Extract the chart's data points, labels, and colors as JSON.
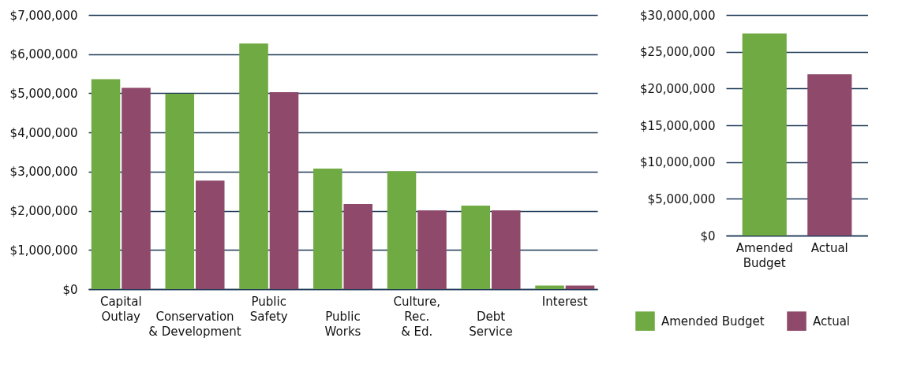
{
  "chart_data": [
    {
      "type": "bar",
      "categories": [
        "Capital\nOutlay",
        "Conservation\n& Development",
        "Public\nSafety",
        "Public\nWorks",
        "Culture,\nRec.\n& Ed.",
        "Debt\nService",
        "Interest"
      ],
      "series": [
        {
          "name": "Amended Budget",
          "color": "#70aa42",
          "values": [
            5360000,
            4990000,
            6270000,
            3080000,
            3010000,
            2130000,
            90000
          ]
        },
        {
          "name": "Actual",
          "color": "#8f496b",
          "values": [
            5140000,
            2770000,
            5030000,
            2170000,
            2010000,
            2010000,
            90000
          ]
        }
      ],
      "ylim": [
        0,
        7000000
      ],
      "yticks": [
        {
          "value": 0,
          "label": "$0"
        },
        {
          "value": 1000000,
          "label": "$1,000,000"
        },
        {
          "value": 2000000,
          "label": "$2,000,000"
        },
        {
          "value": 3000000,
          "label": "$3,000,000"
        },
        {
          "value": 4000000,
          "label": "$4,000,000"
        },
        {
          "value": 5000000,
          "label": "$5,000,000"
        },
        {
          "value": 6000000,
          "label": "$6,000,000"
        },
        {
          "value": 7000000,
          "label": "$7,000,000"
        }
      ],
      "grid": "y",
      "legend": "bottom right"
    },
    {
      "type": "bar",
      "categories": [
        "Amended\nBudget",
        "Actual"
      ],
      "values": [
        27470000,
        21940000
      ],
      "colors": [
        "#70aa42",
        "#8f496b"
      ],
      "ylim": [
        0,
        30000000
      ],
      "yticks": [
        {
          "value": 0,
          "label": "$0"
        },
        {
          "value": 5000000,
          "label": "$5,000,000"
        },
        {
          "value": 10000000,
          "label": "$10,000,000"
        },
        {
          "value": 15000000,
          "label": "$15,000,000"
        },
        {
          "value": 20000000,
          "label": "$20,000,000"
        },
        {
          "value": 25000000,
          "label": "$25,000,000"
        },
        {
          "value": 30000000,
          "label": "$30,000,000"
        }
      ],
      "grid": "y"
    }
  ]
}
